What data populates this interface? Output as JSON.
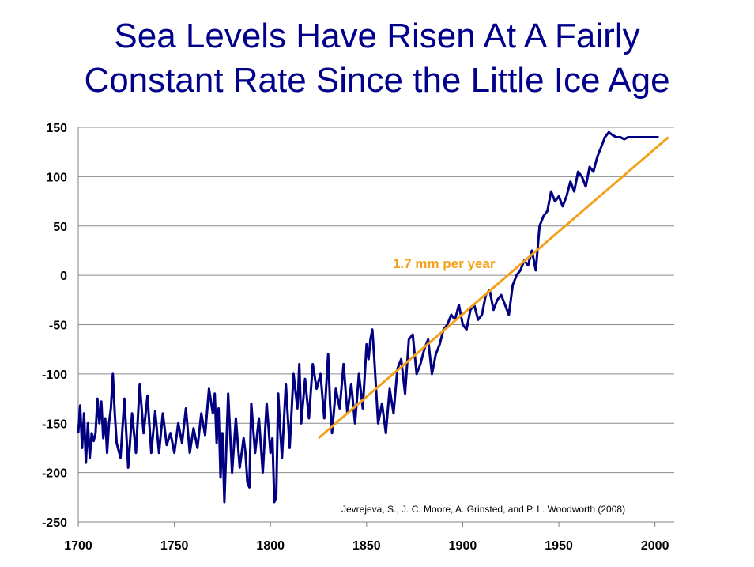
{
  "title_lines": [
    "Sea Levels Have Risen At A Fairly",
    "Constant Rate Since the Little Ice Age"
  ],
  "colors": {
    "title": "#00008b",
    "series": "#000080",
    "trend": "#f5a01a",
    "grid": "#8c8c8c"
  },
  "chart_data": {
    "type": "line",
    "title": "Sea Levels Have Risen At A Fairly Constant Rate Since the Little Ice Age",
    "xlim": [
      1700,
      2010
    ],
    "ylim": [
      -250,
      150
    ],
    "x_ticks": [
      1700,
      1750,
      1800,
      1850,
      1900,
      1950,
      2000
    ],
    "y_ticks": [
      150,
      100,
      50,
      0,
      -50,
      -100,
      -150,
      -200,
      -250
    ],
    "grid": "horizontal",
    "annotation": "1.7 mm per year",
    "source": "Jevrejeva, S., J. C. Moore, A. Grinsted, and P. L. Woodworth (2008)",
    "series": [
      {
        "x": [
          1700,
          1701,
          1702,
          1703,
          1704,
          1705,
          1706,
          1707,
          1708,
          1709,
          1710,
          1711,
          1712,
          1713,
          1714,
          1715,
          1716,
          1717,
          1718,
          1719,
          1720,
          1722,
          1724,
          1726,
          1728,
          1730,
          1732,
          1734,
          1736,
          1738,
          1740,
          1742,
          1744,
          1746,
          1748,
          1750,
          1752,
          1754,
          1756,
          1758,
          1760,
          1762,
          1764,
          1766,
          1768,
          1770,
          1771,
          1772,
          1773,
          1774,
          1775,
          1776,
          1778,
          1780,
          1782,
          1784,
          1786,
          1787,
          1788,
          1789,
          1790,
          1792,
          1794,
          1796,
          1798,
          1800,
          1801,
          1802,
          1803,
          1804,
          1805,
          1806,
          1808,
          1810,
          1812,
          1814,
          1815,
          1816,
          1818,
          1820,
          1822,
          1824,
          1826,
          1828,
          1830,
          1831,
          1832,
          1834,
          1836,
          1838,
          1840,
          1842,
          1844,
          1846,
          1848,
          1850,
          1851,
          1852,
          1853,
          1854,
          1856,
          1858,
          1860,
          1862,
          1864,
          1866,
          1868,
          1870,
          1872,
          1874,
          1876,
          1878,
          1880,
          1882,
          1884,
          1886,
          1888,
          1890,
          1892,
          1894,
          1896,
          1898,
          1900,
          1902,
          1904,
          1906,
          1908,
          1910,
          1912,
          1914,
          1916,
          1918,
          1920,
          1922,
          1924,
          1926,
          1928,
          1930,
          1932,
          1934,
          1936,
          1938,
          1940,
          1942,
          1944,
          1946,
          1948,
          1950,
          1952,
          1954,
          1956,
          1958,
          1960,
          1962,
          1964,
          1966,
          1968,
          1970,
          1972,
          1974,
          1976,
          1978,
          1980,
          1982,
          1984,
          1986,
          1988,
          1990,
          1992,
          1994,
          1996,
          1998,
          2000,
          2002
        ],
        "y": [
          -160,
          -132,
          -175,
          -140,
          -190,
          -150,
          -185,
          -160,
          -168,
          -160,
          -125,
          -150,
          -128,
          -165,
          -145,
          -180,
          -150,
          -135,
          -100,
          -140,
          -170,
          -185,
          -125,
          -195,
          -140,
          -180,
          -110,
          -160,
          -122,
          -180,
          -138,
          -180,
          -140,
          -172,
          -160,
          -180,
          -150,
          -170,
          -135,
          -180,
          -155,
          -175,
          -140,
          -162,
          -115,
          -140,
          -120,
          -170,
          -135,
          -205,
          -160,
          -230,
          -120,
          -200,
          -145,
          -195,
          -165,
          -180,
          -210,
          -215,
          -130,
          -180,
          -145,
          -200,
          -130,
          -180,
          -165,
          -230,
          -225,
          -120,
          -155,
          -185,
          -110,
          -175,
          -100,
          -135,
          -90,
          -150,
          -105,
          -145,
          -90,
          -115,
          -100,
          -145,
          -80,
          -130,
          -160,
          -115,
          -135,
          -90,
          -140,
          -110,
          -150,
          -100,
          -135,
          -70,
          -85,
          -65,
          -55,
          -85,
          -150,
          -130,
          -160,
          -115,
          -140,
          -95,
          -85,
          -120,
          -65,
          -60,
          -100,
          -90,
          -75,
          -65,
          -100,
          -80,
          -70,
          -55,
          -50,
          -40,
          -45,
          -30,
          -50,
          -55,
          -35,
          -30,
          -45,
          -40,
          -20,
          -15,
          -35,
          -25,
          -20,
          -30,
          -40,
          -10,
          0,
          5,
          15,
          10,
          25,
          5,
          50,
          60,
          65,
          85,
          75,
          80,
          70,
          80,
          95,
          85,
          105,
          100,
          90,
          110,
          105,
          120,
          130,
          140,
          145,
          142,
          140,
          140,
          138,
          140,
          140,
          140,
          140,
          140,
          140,
          140,
          140,
          140
        ]
      }
    ],
    "trend": {
      "x": [
        1825,
        2007
      ],
      "y": [
        -165,
        140
      ]
    }
  }
}
